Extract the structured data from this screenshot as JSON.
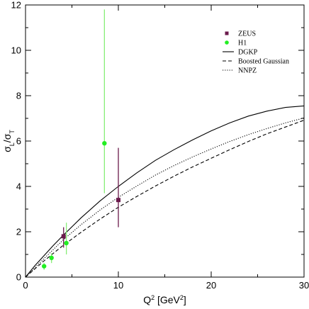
{
  "chart_data": {
    "type": "scatter",
    "xlabel": "Q² [GeV²]",
    "ylabel": "σL/σT",
    "xlim": [
      0,
      30
    ],
    "ylim": [
      0,
      12
    ],
    "x_ticks": [
      0,
      10,
      20,
      30
    ],
    "y_ticks": [
      0,
      2,
      4,
      6,
      8,
      10,
      12
    ],
    "grid": false,
    "legend_position": "top-right",
    "series": [
      {
        "name": "ZEUS",
        "kind": "points",
        "color": "#6b1a4c",
        "marker": "square",
        "points": [
          {
            "x": 4.1,
            "y": 1.8,
            "ylow": 1.3,
            "yhigh": 2.2
          },
          {
            "x": 10.0,
            "y": 3.4,
            "ylow": 2.2,
            "yhigh": 5.7
          }
        ]
      },
      {
        "name": "H1",
        "kind": "points",
        "color": "#22ee22",
        "marker": "circle",
        "errcolor": "#88ee77",
        "points": [
          {
            "x": 2.0,
            "y": 0.48,
            "ylow": 0.32,
            "yhigh": 0.62
          },
          {
            "x": 2.8,
            "y": 0.85,
            "ylow": 0.62,
            "yhigh": 1.05
          },
          {
            "x": 4.4,
            "y": 1.5,
            "ylow": 1.0,
            "yhigh": 2.4
          },
          {
            "x": 8.5,
            "y": 5.9,
            "ylow": 3.7,
            "yhigh": 11.8
          }
        ]
      },
      {
        "name": "DGKP",
        "kind": "line",
        "style": "solid",
        "color": "#000000",
        "x": [
          0,
          1,
          2,
          3,
          4,
          5,
          6,
          8,
          10,
          12,
          14,
          16,
          18,
          20,
          22,
          24,
          26,
          28,
          30
        ],
        "y": [
          0,
          0.5,
          0.95,
          1.4,
          1.82,
          2.22,
          2.62,
          3.35,
          4.0,
          4.6,
          5.15,
          5.62,
          6.05,
          6.45,
          6.8,
          7.1,
          7.32,
          7.48,
          7.55
        ]
      },
      {
        "name": "Boosted Gaussian",
        "kind": "line",
        "style": "dashed",
        "color": "#000000",
        "x": [
          0,
          2,
          4,
          6,
          8,
          10,
          12,
          14,
          16,
          18,
          20,
          22,
          24,
          26,
          28,
          30
        ],
        "y": [
          0,
          0.72,
          1.38,
          1.98,
          2.55,
          3.08,
          3.56,
          4.02,
          4.45,
          4.86,
          5.24,
          5.62,
          5.98,
          6.32,
          6.62,
          6.92
        ]
      },
      {
        "name": "NNPZ",
        "kind": "line",
        "style": "dotted",
        "color": "#000000",
        "x": [
          0,
          2,
          4,
          6,
          8,
          10,
          12,
          14,
          16,
          18,
          20,
          22,
          24,
          26,
          28,
          30
        ],
        "y": [
          0,
          0.82,
          1.62,
          2.32,
          2.95,
          3.52,
          4.02,
          4.5,
          4.92,
          5.3,
          5.65,
          5.98,
          6.28,
          6.55,
          6.8,
          7.02
        ]
      }
    ]
  }
}
